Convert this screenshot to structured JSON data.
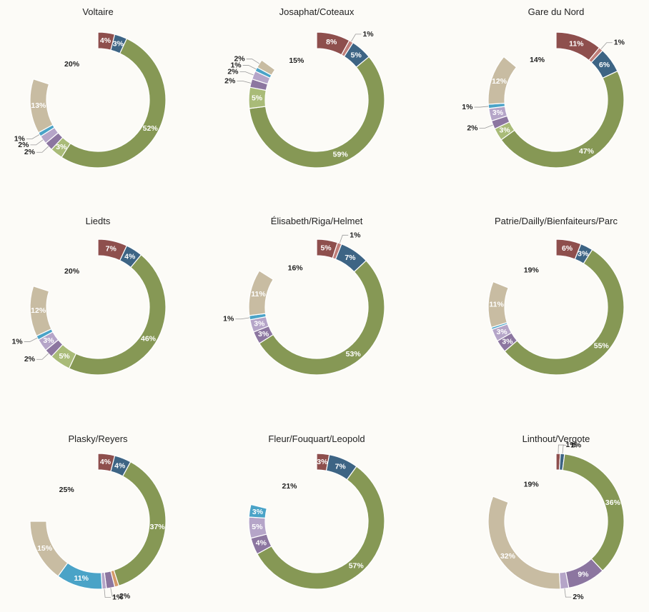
{
  "chart_data": [
    {
      "type": "pie",
      "style": "donut",
      "title": "Voltaire",
      "slices": [
        {
          "value": 4,
          "label": "4%",
          "color": "#8e4f4d"
        },
        {
          "value": 3,
          "label": "3%",
          "color": "#3d6484"
        },
        {
          "value": 52,
          "label": "52%",
          "color": "#869855"
        },
        {
          "value": 3,
          "label": "3%",
          "color": "#a9bb78"
        },
        {
          "value": 2,
          "label": "2%",
          "color": "#8c76a0"
        },
        {
          "value": 2,
          "label": "2%",
          "color": "#b5a5c8"
        },
        {
          "value": 1,
          "label": "1%",
          "color": "#4aa3c7"
        },
        {
          "value": 13,
          "label": "13%",
          "color": "#c8bca2"
        },
        {
          "value": 20,
          "label": "20%",
          "color": "transparent"
        }
      ]
    },
    {
      "type": "pie",
      "style": "donut",
      "title": "Josaphat/Coteaux",
      "slices": [
        {
          "value": 8,
          "label": "8%",
          "color": "#8e4f4d"
        },
        {
          "value": 1,
          "label": "1%",
          "color": "#c07e79"
        },
        {
          "value": 5,
          "label": "5%",
          "color": "#3d6484"
        },
        {
          "value": 59,
          "label": "59%",
          "color": "#869855"
        },
        {
          "value": 5,
          "label": "5%",
          "color": "#a9bb78"
        },
        {
          "value": 2,
          "label": "2%",
          "color": "#8c76a0"
        },
        {
          "value": 2,
          "label": "2%",
          "color": "#b5a5c8"
        },
        {
          "value": 1,
          "label": "1%",
          "color": "#4aa3c7"
        },
        {
          "value": 2,
          "label": "2%",
          "color": "#c8bca2"
        },
        {
          "value": 15,
          "label": "15%",
          "color": "transparent"
        }
      ]
    },
    {
      "type": "pie",
      "style": "donut",
      "title": "Gare du Nord",
      "slices": [
        {
          "value": 11,
          "label": "11%",
          "color": "#8e4f4d"
        },
        {
          "value": 1,
          "label": "1%",
          "color": "#c07e79"
        },
        {
          "value": 6,
          "label": "6%",
          "color": "#3d6484"
        },
        {
          "value": 47,
          "label": "47%",
          "color": "#869855"
        },
        {
          "value": 3,
          "label": "3%",
          "color": "#a9bb78"
        },
        {
          "value": 2,
          "label": "2%",
          "color": "#8c76a0"
        },
        {
          "value": 3,
          "label": "3%",
          "color": "#b5a5c8"
        },
        {
          "value": 1,
          "label": "1%",
          "color": "#4aa3c7"
        },
        {
          "value": 12,
          "label": "12%",
          "color": "#c8bca2"
        },
        {
          "value": 14,
          "label": "14%",
          "color": "transparent"
        }
      ]
    },
    {
      "type": "pie",
      "style": "donut",
      "title": "Liedts",
      "slices": [
        {
          "value": 7,
          "label": "7%",
          "color": "#8e4f4d"
        },
        {
          "value": 4,
          "label": "4%",
          "color": "#3d6484"
        },
        {
          "value": 46,
          "label": "46%",
          "color": "#869855"
        },
        {
          "value": 5,
          "label": "5%",
          "color": "#a9bb78"
        },
        {
          "value": 2,
          "label": "2%",
          "color": "#8c76a0"
        },
        {
          "value": 3,
          "label": "3%",
          "color": "#b5a5c8"
        },
        {
          "value": 1,
          "label": "1%",
          "color": "#4aa3c7"
        },
        {
          "value": 12,
          "label": "12%",
          "color": "#c8bca2"
        },
        {
          "value": 20,
          "label": "20%",
          "color": "transparent"
        }
      ]
    },
    {
      "type": "pie",
      "style": "donut",
      "title": "Élisabeth/Riga/Helmet",
      "slices": [
        {
          "value": 5,
          "label": "5%",
          "color": "#8e4f4d"
        },
        {
          "value": 1,
          "label": "1%",
          "color": "#c07e79"
        },
        {
          "value": 7,
          "label": "7%",
          "color": "#3d6484"
        },
        {
          "value": 53,
          "label": "53%",
          "color": "#869855"
        },
        {
          "value": 3,
          "label": "3%",
          "color": "#8c76a0"
        },
        {
          "value": 3,
          "label": "3%",
          "color": "#b5a5c8"
        },
        {
          "value": 1,
          "label": "1%",
          "color": "#4aa3c7"
        },
        {
          "value": 11,
          "label": "11%",
          "color": "#c8bca2"
        },
        {
          "value": 16,
          "label": "16%",
          "color": "transparent"
        }
      ]
    },
    {
      "type": "pie",
      "style": "donut",
      "title": "Patrie/Dailly/Bienfaiteurs/Parc",
      "slices": [
        {
          "value": 6,
          "label": "6%",
          "color": "#8e4f4d"
        },
        {
          "value": 3,
          "label": "3%",
          "color": "#3d6484"
        },
        {
          "value": 55,
          "label": "55%",
          "color": "#869855"
        },
        {
          "value": 3,
          "label": "3%",
          "color": "#8c76a0"
        },
        {
          "value": 3,
          "label": "3%",
          "color": "#b5a5c8"
        },
        {
          "value": 0.5,
          "label": "",
          "color": "#4aa3c7"
        },
        {
          "value": 11,
          "label": "11%",
          "color": "#c8bca2"
        },
        {
          "value": 19,
          "label": "19%",
          "color": "transparent"
        }
      ]
    },
    {
      "type": "pie",
      "style": "donut",
      "title": "Plasky/Reyers",
      "slices": [
        {
          "value": 4,
          "label": "4%",
          "color": "#8e4f4d"
        },
        {
          "value": 4,
          "label": "4%",
          "color": "#3d6484"
        },
        {
          "value": 37,
          "label": "37%",
          "color": "#869855"
        },
        {
          "value": 1,
          "label": "",
          "color": "#d49a6a"
        },
        {
          "value": 2,
          "label": "2%",
          "color": "#8c76a0"
        },
        {
          "value": 1,
          "label": "1%",
          "color": "#b5a5c8"
        },
        {
          "value": 11,
          "label": "11%",
          "color": "#4aa3c7"
        },
        {
          "value": 15,
          "label": "15%",
          "color": "#c8bca2"
        },
        {
          "value": 25,
          "label": "25%",
          "color": "transparent"
        }
      ]
    },
    {
      "type": "pie",
      "style": "donut",
      "title": "Fleur/Fouquart/Leopold",
      "slices": [
        {
          "value": 3,
          "label": "3%",
          "color": "#8e4f4d"
        },
        {
          "value": 7,
          "label": "7%",
          "color": "#3d6484"
        },
        {
          "value": 57,
          "label": "57%",
          "color": "#869855"
        },
        {
          "value": 4,
          "label": "4%",
          "color": "#8c76a0"
        },
        {
          "value": 5,
          "label": "5%",
          "color": "#b5a5c8"
        },
        {
          "value": 3,
          "label": "3%",
          "color": "#4aa3c7"
        },
        {
          "value": 21,
          "label": "21%",
          "color": "transparent"
        }
      ]
    },
    {
      "type": "pie",
      "style": "donut",
      "title": "Linthout/Vergote",
      "slices": [
        {
          "value": 1,
          "label": "1%",
          "color": "#8e4f4d"
        },
        {
          "value": 1,
          "label": "1%",
          "color": "#3d6484"
        },
        {
          "value": 36,
          "label": "36%",
          "color": "#869855"
        },
        {
          "value": 9,
          "label": "9%",
          "color": "#8c76a0"
        },
        {
          "value": 2,
          "label": "2%",
          "color": "#b5a5c8"
        },
        {
          "value": 32,
          "label": "32%",
          "color": "#c8bca2"
        },
        {
          "value": 19,
          "label": "19%",
          "color": "transparent"
        }
      ]
    }
  ]
}
